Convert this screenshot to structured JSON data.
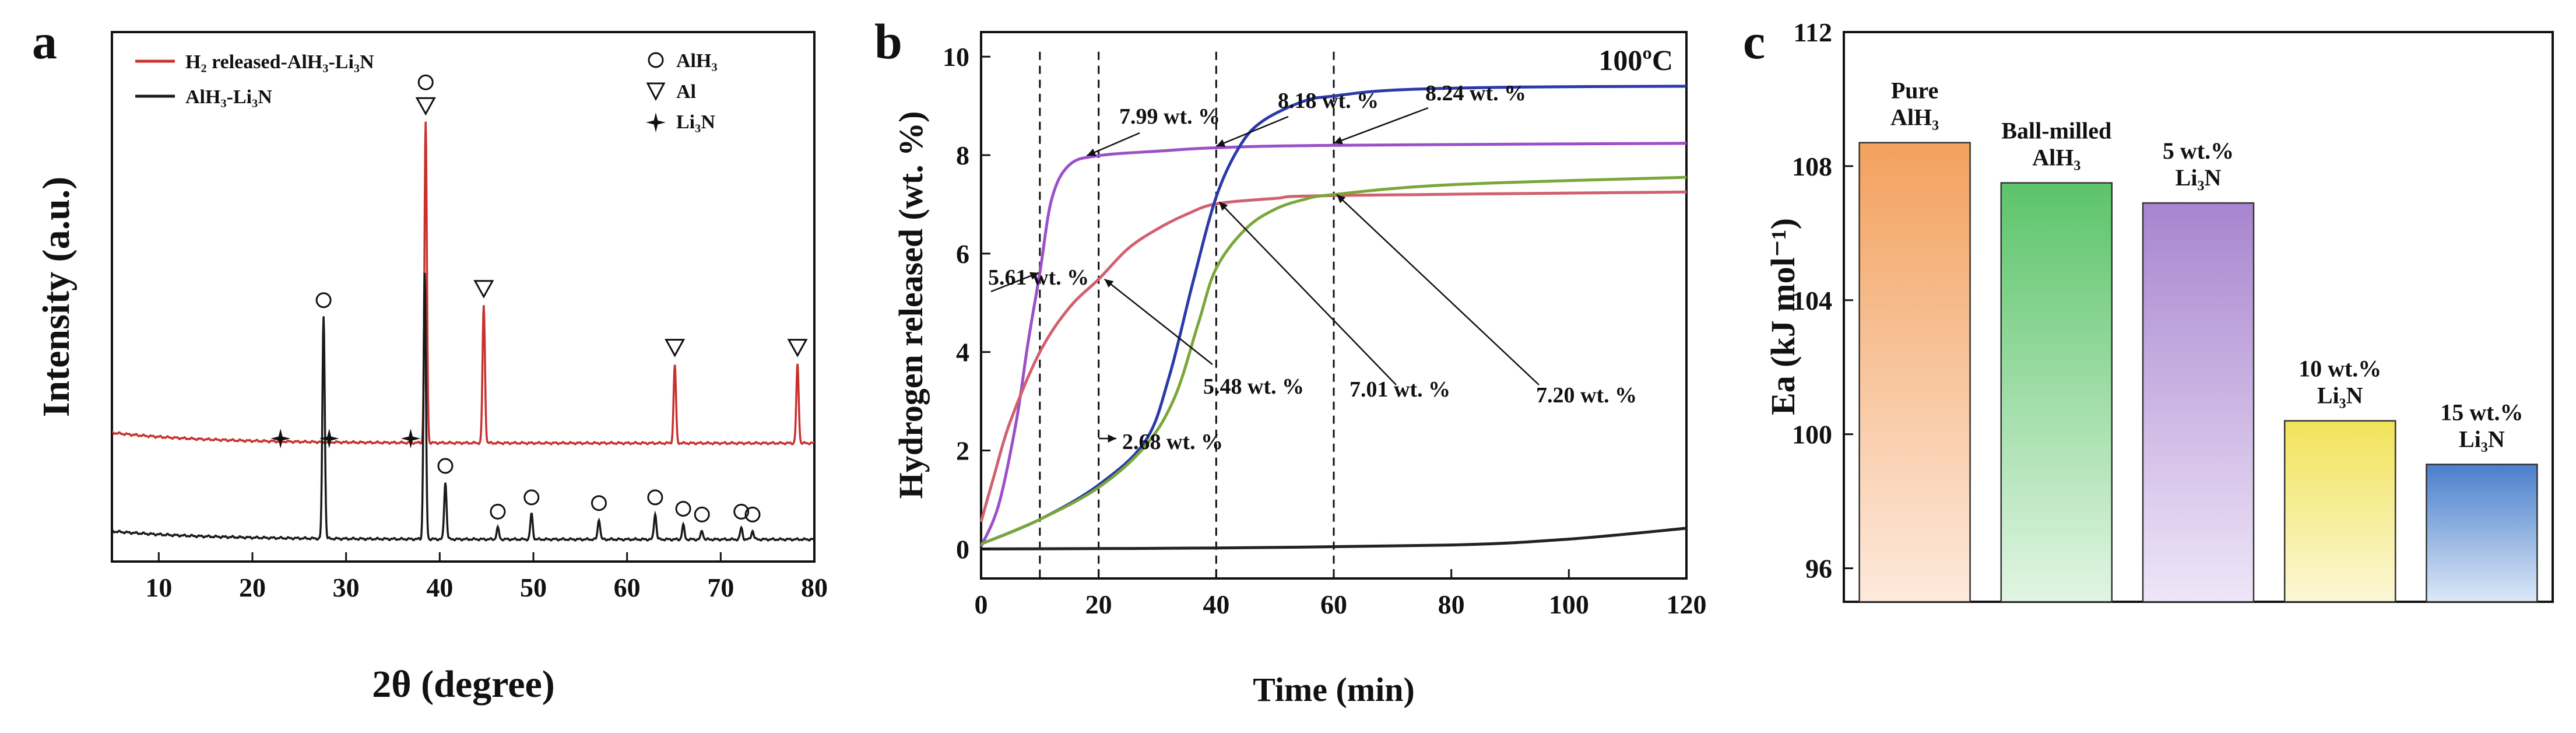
{
  "chart_data": [
    {
      "type": "line",
      "panel": "a",
      "xlabel": "2θ (degree)",
      "ylabel": "Intensity (a.u.)",
      "xlim": [
        5,
        80
      ],
      "xticks": [
        10,
        20,
        30,
        40,
        50,
        60,
        70,
        80
      ],
      "legend": [
        {
          "name": "H₂ released-AlH₃-Li₃N",
          "color": "#c8312e"
        },
        {
          "name": "AlH₃-Li₃N",
          "color": "#1a1a1a"
        }
      ],
      "phase_legend": [
        {
          "symbol": "circle",
          "label": "AlH₃"
        },
        {
          "symbol": "triangle",
          "label": "Al"
        },
        {
          "symbol": "star",
          "label": "Li₃N"
        }
      ],
      "series": [
        {
          "name": "H₂ released-AlH₃-Li₃N",
          "color": "#c8312e",
          "peaks": [
            {
              "x": 38.5,
              "h": 0.98,
              "marker": "triangle"
            },
            {
              "x": 44.7,
              "h": 0.42,
              "marker": "triangle"
            },
            {
              "x": 65.1,
              "h": 0.24,
              "marker": "triangle"
            },
            {
              "x": 78.2,
              "h": 0.24,
              "marker": "triangle"
            },
            {
              "x": 23.0,
              "h": 0.0,
              "marker": "star"
            },
            {
              "x": 28.2,
              "h": 0.0,
              "marker": "star"
            },
            {
              "x": 36.9,
              "h": 0.0,
              "marker": "star"
            }
          ]
        },
        {
          "name": "AlH₃-Li₃N",
          "color": "#1a1a1a",
          "peaks": [
            {
              "x": 27.6,
              "h": 0.78,
              "marker": "circle"
            },
            {
              "x": 38.4,
              "h": 0.93,
              "marker": "circle"
            },
            {
              "x": 40.6,
              "h": 0.2,
              "marker": "circle"
            },
            {
              "x": 46.2,
              "h": 0.04,
              "marker": "circle"
            },
            {
              "x": 49.8,
              "h": 0.09,
              "marker": "circle"
            },
            {
              "x": 57.0,
              "h": 0.07,
              "marker": "circle"
            },
            {
              "x": 63.0,
              "h": 0.09,
              "marker": "circle"
            },
            {
              "x": 66.0,
              "h": 0.05,
              "marker": "circle"
            },
            {
              "x": 68.0,
              "h": 0.03,
              "marker": "circle"
            },
            {
              "x": 72.2,
              "h": 0.04,
              "marker": "circle"
            },
            {
              "x": 73.4,
              "h": 0.03,
              "marker": "circle"
            }
          ]
        }
      ]
    },
    {
      "type": "line",
      "panel": "b",
      "title": "100ºC",
      "xlabel": "Time (min)",
      "ylabel": "Hydrogen released (wt. %)",
      "xlim": [
        0,
        120
      ],
      "ylim": [
        -0.6,
        10.5
      ],
      "xticks": [
        0,
        20,
        40,
        60,
        80,
        100,
        120
      ],
      "yticks": [
        0,
        2,
        4,
        6,
        8,
        10
      ],
      "vlines": [
        10,
        20,
        40,
        60
      ],
      "series": [
        {
          "name": "Purple",
          "color": "#9b4fc9",
          "x": [
            0,
            3,
            6,
            8,
            10,
            12,
            15,
            20,
            30,
            40,
            60,
            120
          ],
          "y": [
            0.05,
            0.9,
            2.6,
            4.2,
            5.61,
            7.1,
            7.8,
            7.99,
            8.08,
            8.15,
            8.2,
            8.24
          ]
        },
        {
          "name": "Red",
          "color": "#d0616f",
          "x": [
            0,
            2,
            5,
            10,
            15,
            20,
            25,
            30,
            35,
            40,
            50,
            60,
            120
          ],
          "y": [
            0.55,
            1.4,
            2.6,
            4.0,
            4.9,
            5.48,
            6.1,
            6.5,
            6.8,
            7.01,
            7.12,
            7.18,
            7.25
          ]
        },
        {
          "name": "Blue",
          "color": "#2a3aa8",
          "x": [
            0,
            10,
            20,
            28,
            32,
            36,
            40,
            44,
            48,
            55,
            60,
            70,
            90,
            120
          ],
          "y": [
            0.1,
            0.6,
            1.3,
            2.2,
            3.5,
            5.4,
            7.15,
            8.18,
            8.7,
            9.1,
            9.2,
            9.32,
            9.38,
            9.4
          ]
        },
        {
          "name": "Green",
          "color": "#7aa63a",
          "x": [
            0,
            10,
            20,
            28,
            33,
            37,
            40,
            45,
            50,
            55,
            60,
            80,
            120
          ],
          "y": [
            0.1,
            0.6,
            1.25,
            2.1,
            3.1,
            4.6,
            5.7,
            6.5,
            6.9,
            7.1,
            7.2,
            7.4,
            7.55
          ]
        },
        {
          "name": "Black",
          "color": "#222222",
          "x": [
            0,
            40,
            80,
            100,
            120
          ],
          "y": [
            0.0,
            0.02,
            0.08,
            0.2,
            0.42
          ]
        }
      ],
      "annotations": [
        "7.99 wt. %",
        "8.18 wt. %",
        "8.24 wt. %",
        "5.61 wt. %",
        "5.48 wt. %",
        "7.01 wt. %",
        "7.20 wt. %",
        "2.68 wt. %"
      ]
    },
    {
      "type": "bar",
      "panel": "c",
      "ylabel": "Ea (kJ mol⁻¹)",
      "ylim": [
        95,
        112
      ],
      "yticks": [
        96,
        100,
        104,
        108,
        112
      ],
      "categories": [
        [
          "Pure",
          "AlH₃"
        ],
        [
          "Ball-milled",
          "AlH₃"
        ],
        [
          "5 wt.%",
          "Li₃N"
        ],
        [
          "10 wt.%",
          "Li₃N"
        ],
        [
          "15 wt.%",
          "Li₃N"
        ]
      ],
      "values": [
        108.7,
        107.5,
        106.9,
        100.4,
        99.1
      ],
      "colors": [
        "#f3a15e",
        "#5cc46a",
        "#a885cf",
        "#f2e35a",
        "#4a7fcc"
      ]
    }
  ]
}
